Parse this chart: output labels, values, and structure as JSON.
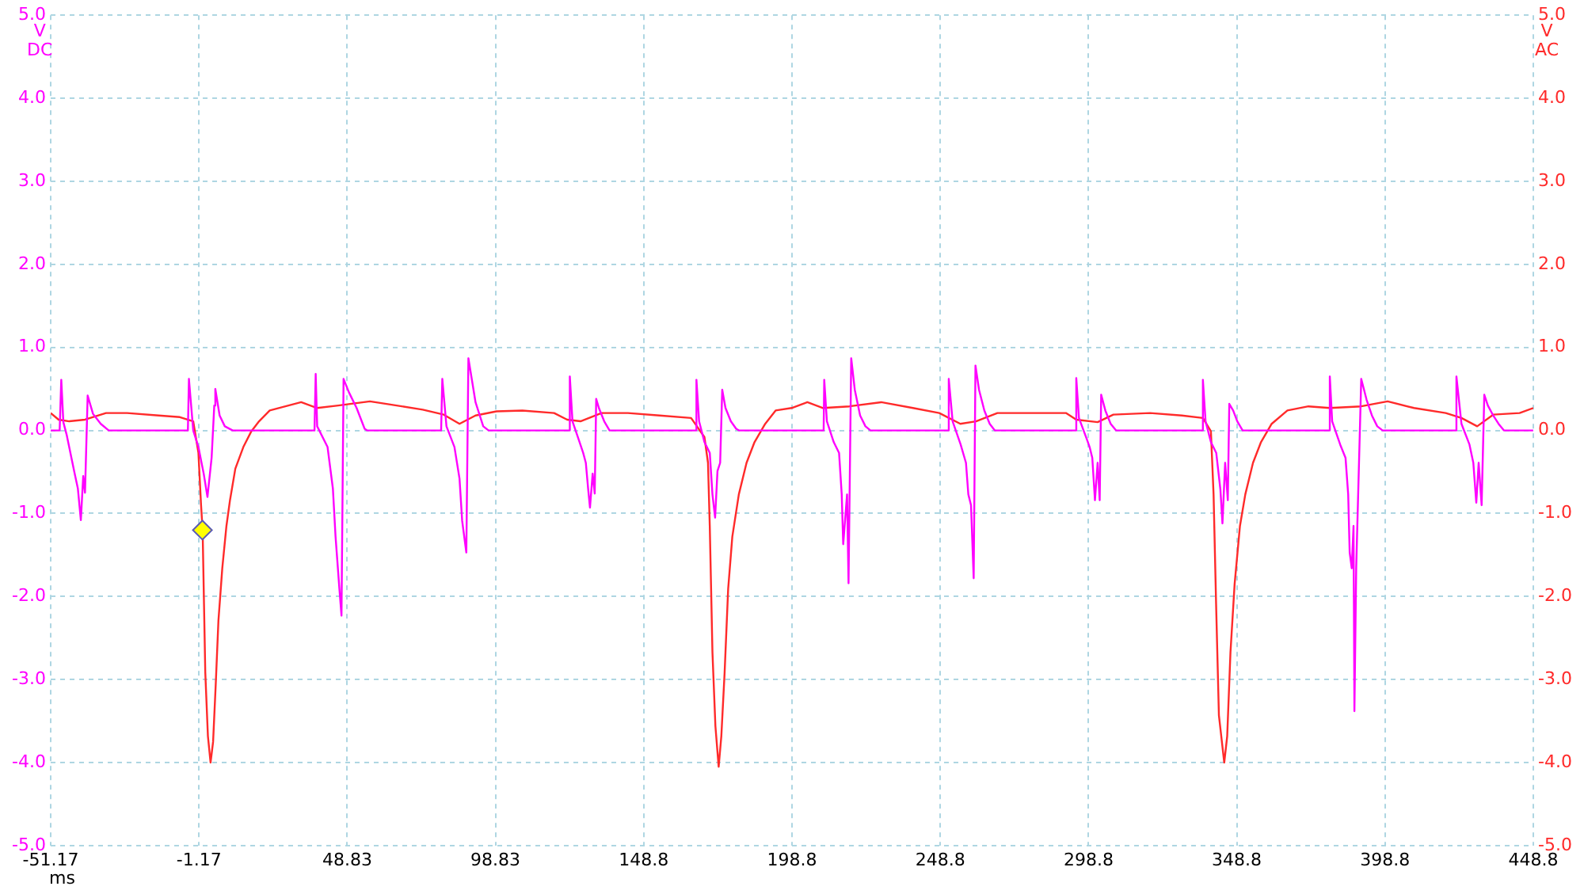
{
  "chart_data": {
    "type": "line",
    "xlabel": "ms",
    "ylabel": "V DC",
    "y2label": "V AC",
    "xlim": [
      -51.17,
      448.83
    ],
    "xticks": [
      -51.17,
      -1.17,
      48.83,
      98.83,
      {
        "value": 148.83,
        "label": "148.8"
      },
      {
        "value": 198.83,
        "label": "198.8"
      },
      {
        "value": 248.83,
        "label": "248.8"
      },
      {
        "value": 298.83,
        "label": "298.8"
      },
      {
        "value": 348.83,
        "label": "348.8"
      },
      {
        "value": 398.83,
        "label": "398.8"
      },
      {
        "value": 448.83,
        "label": "448.8"
      }
    ],
    "ylim": [
      -5,
      5
    ],
    "yticks": [
      {
        "value": -5,
        "label": "-5.0"
      },
      {
        "value": -4,
        "label": "-4.0"
      },
      {
        "value": -3,
        "label": "-3.0"
      },
      {
        "value": -2,
        "label": "-2.0"
      },
      {
        "value": -1,
        "label": "-1.0"
      },
      {
        "value": 0,
        "label": "0.0"
      },
      {
        "value": 1,
        "label": "1.0"
      },
      {
        "value": 2,
        "label": "2.0"
      },
      {
        "value": 3,
        "label": "3.0"
      },
      {
        "value": 4,
        "label": "4.0"
      },
      {
        "value": 5,
        "label": "5.0"
      }
    ],
    "y2lim": [
      -5,
      5
    ],
    "y2ticks": [
      {
        "value": -5,
        "label": "-5.0"
      },
      {
        "value": -4,
        "label": "-4.0"
      },
      {
        "value": -3,
        "label": "-3.0"
      },
      {
        "value": -2,
        "label": "-2.0"
      },
      {
        "value": -1,
        "label": "-1.0"
      },
      {
        "value": 0,
        "label": "0.0"
      },
      {
        "value": 1,
        "label": "1.0"
      },
      {
        "value": 2,
        "label": "2.0"
      },
      {
        "value": 3,
        "label": "3.0"
      },
      {
        "value": 4,
        "label": "4.0"
      },
      {
        "value": 5,
        "label": "5.0"
      }
    ],
    "grid": true,
    "series": [
      {
        "color": "#ff00ff",
        "x": [
          -51.17,
          -48.15,
          -47.6,
          -46.9,
          -45.8,
          -43.2,
          -42.0,
          -41.0,
          -40.2,
          -39.6,
          -38.7,
          -36.9,
          -34.3,
          -31.6,
          -4.9,
          -4.55,
          -3.1,
          -1.35,
          0.43,
          1.7,
          3.1,
          4.0,
          4.35,
          5.8,
          7.55,
          10.2,
          37.8,
          38.2,
          38.7,
          42.2,
          44.0,
          44.9,
          46.2,
          46.9,
          47.6,
          49.4,
          52.0,
          54.7,
          55.5,
          80.5,
          80.9,
          82.3,
          85.0,
          86.7,
          87.6,
          89.0,
          89.7,
          92.1,
          94.7,
          96.5,
          123.6,
          123.9,
          124.8,
          126.6,
          128.4,
          129.3,
          130.1,
          130.7,
          131.6,
          132.3,
          132.8,
          133.7,
          135.5,
          137.3,
          166.4,
          166.6,
          167.5,
          169.3,
          171.1,
          172.0,
          172.9,
          173.7,
          174.6,
          175.3,
          176.4,
          178.2,
          180.0,
          180.9,
          209.5,
          209.7,
          210.6,
          212.9,
          214.7,
          215.6,
          216.1,
          217.4,
          217.9,
          218.8,
          220.0,
          221.8,
          223.6,
          225.3,
          251.5,
          251.7,
          253.0,
          255.7,
          257.5,
          258.3,
          259.2,
          260.1,
          260.7,
          261.9,
          263.7,
          265.5,
          267.2,
          294.5,
          294.7,
          295.6,
          298.3,
          299.2,
          300.1,
          301.0,
          301.9,
          302.6,
          303.1,
          304.5,
          306.3,
          308.1,
          337.2,
          337.4,
          338.3,
          340.1,
          341.9,
          343.3,
          344.0,
          344.9,
          345.8,
          346.3,
          347.6,
          349.0,
          350.8,
          380.0,
          380.2,
          381.0,
          383.7,
          385.5,
          386.4,
          386.9,
          387.6,
          388.2,
          388.5,
          389.1,
          390.8,
          392.6,
          394.4,
          396.2,
          398.0,
          422.7,
          422.9,
          424.6,
          427.3,
          428.6,
          429.6,
          430.4,
          431.4,
          432.3,
          433.5,
          435.3,
          437.1,
          438.9,
          448.8
        ],
        "values": [
          0,
          0,
          0.61,
          0.1,
          -0.05,
          -0.5,
          -0.7,
          -1.08,
          -0.55,
          -0.75,
          0.42,
          0.2,
          0.08,
          0,
          0,
          0.62,
          0,
          -0.2,
          -0.52,
          -0.8,
          -0.33,
          0.3,
          0.5,
          0.18,
          0.05,
          0,
          0,
          0.68,
          0.05,
          -0.2,
          -0.7,
          -1.28,
          -1.91,
          -2.23,
          0.62,
          0.46,
          0.27,
          0.02,
          0,
          0,
          0.62,
          0.05,
          -0.2,
          -0.58,
          -1.09,
          -1.47,
          0.87,
          0.34,
          0.05,
          0,
          0,
          0.65,
          0.11,
          -0.08,
          -0.27,
          -0.39,
          -0.71,
          -0.93,
          -0.52,
          -0.76,
          0.38,
          0.27,
          0.11,
          0,
          0,
          0.61,
          0.11,
          -0.14,
          -0.27,
          -0.77,
          -1.05,
          -0.49,
          -0.39,
          0.49,
          0.27,
          0.11,
          0.02,
          0,
          0,
          0.61,
          0.11,
          -0.14,
          -0.27,
          -0.77,
          -1.37,
          -0.77,
          -1.84,
          0.87,
          0.49,
          0.18,
          0.05,
          0,
          0,
          0.62,
          0.11,
          -0.17,
          -0.39,
          -0.77,
          -0.9,
          -1.78,
          0.78,
          0.49,
          0.24,
          0.08,
          0,
          0,
          0.63,
          0.15,
          -0.11,
          -0.2,
          -0.33,
          -0.84,
          -0.39,
          -0.84,
          0.43,
          0.24,
          0.08,
          0,
          0,
          0.61,
          0.11,
          -0.14,
          -0.27,
          -0.71,
          -1.12,
          -0.39,
          -0.84,
          0.32,
          0.24,
          0.11,
          0,
          0,
          0.65,
          0.11,
          -0.17,
          -0.33,
          -0.77,
          -1.47,
          -1.66,
          -1.15,
          -3.38,
          -1.66,
          0.62,
          0.37,
          0.18,
          0.05,
          0,
          0,
          0.65,
          0.08,
          -0.17,
          -0.39,
          -0.87,
          -0.39,
          -0.9,
          0.43,
          0.3,
          0.18,
          0.08,
          0,
          0
        ]
      },
      {
        "color": "#ff2a2a",
        "axis": "y2",
        "x": [
          -51.17,
          -48.5,
          -44.9,
          -39.6,
          -32.5,
          -25.4,
          -14.7,
          -7.6,
          -3.1,
          -1.35,
          -0.46,
          0.07,
          0.96,
          1.85,
          2.75,
          3.6,
          4.5,
          5.4,
          6.7,
          8.1,
          9.3,
          11.1,
          13.8,
          16.5,
          19.1,
          22.7,
          28.0,
          33.3,
          38.7,
          45.8,
          56.5,
          67.2,
          74.3,
          81.4,
          86.7,
          92.1,
          99.2,
          107.9,
          118.6,
          123.0,
          127.5,
          134.6,
          143.5,
          154.2,
          164.8,
          169.3,
          170.5,
          171.1,
          172.0,
          173.0,
          174.1,
          175.0,
          176.1,
          177.3,
          178.7,
          180.9,
          183.5,
          186.2,
          189.8,
          193.3,
          198.7,
          204.0,
          209.3,
          218.2,
          228.9,
          239.6,
          248.5,
          255.6,
          260.9,
          268.1,
          278.7,
          284.1,
          291.2,
          294.7,
          301.9,
          307.2,
          319.6,
          330.3,
          337.4,
          340.1,
          341.0,
          341.9,
          342.8,
          344.6,
          345.6,
          346.7,
          348.1,
          349.9,
          351.7,
          354.3,
          357.0,
          360.6,
          365.9,
          373.0,
          380.2,
          390.8,
          399.7,
          408.6,
          419.3,
          424.6,
          429.9,
          435.3,
          444.2,
          448.8
        ],
        "values": [
          0.21,
          0.13,
          0.11,
          0.13,
          0.21,
          0.21,
          0.18,
          0.16,
          0.11,
          -0.27,
          -0.9,
          -1.2,
          -2.91,
          -3.68,
          -4.0,
          -3.75,
          -3.05,
          -2.29,
          -1.66,
          -1.15,
          -0.84,
          -0.46,
          -0.2,
          -0.01,
          0.11,
          0.24,
          0.29,
          0.34,
          0.27,
          0.3,
          0.35,
          0.29,
          0.25,
          0.19,
          0.08,
          0.18,
          0.23,
          0.24,
          0.21,
          0.13,
          0.11,
          0.21,
          0.21,
          0.18,
          0.15,
          -0.08,
          -0.39,
          -1.15,
          -2.67,
          -3.56,
          -4.05,
          -3.68,
          -2.92,
          -1.91,
          -1.28,
          -0.77,
          -0.39,
          -0.14,
          0.08,
          0.24,
          0.27,
          0.34,
          0.27,
          0.29,
          0.34,
          0.27,
          0.21,
          0.08,
          0.11,
          0.21,
          0.21,
          0.21,
          0.21,
          0.13,
          0.1,
          0.19,
          0.21,
          0.18,
          0.15,
          -0.01,
          -0.77,
          -2.16,
          -3.43,
          -4.0,
          -3.68,
          -2.67,
          -1.85,
          -1.15,
          -0.77,
          -0.39,
          -0.14,
          0.08,
          0.24,
          0.29,
          0.27,
          0.29,
          0.35,
          0.27,
          0.21,
          0.15,
          0.05,
          0.19,
          0.21,
          0.27
        ]
      },
      {
        "type": "scatter",
        "color": "#ffff00",
        "marker": "diamond",
        "x": [
          0
        ],
        "values": [
          -1.2
        ]
      }
    ]
  }
}
